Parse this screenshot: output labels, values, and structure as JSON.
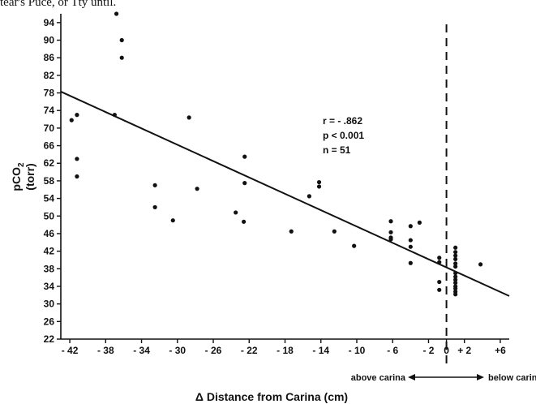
{
  "header_fragment": "tear's Puce, or Tty until.",
  "chart_data": {
    "type": "scatter",
    "title": "",
    "xlabel": "Δ Distance from Carina (cm)",
    "ylabel_line1": "pCO2",
    "ylabel_line2": "(torr)",
    "xlim": [
      -43,
      7
    ],
    "ylim": [
      22,
      96
    ],
    "x_ticks": [
      -42,
      -38,
      -34,
      -30,
      -26,
      -22,
      -18,
      -14,
      -10,
      -6,
      -2,
      0,
      2,
      6
    ],
    "x_tick_labels": [
      "- 42",
      "- 38",
      "- 34",
      "- 30",
      "- 26",
      "- 22",
      "- 18",
      "- 14",
      "- 10",
      "- 6",
      "- 2",
      "0",
      "+ 2",
      "+6"
    ],
    "y_ticks": [
      22,
      26,
      30,
      34,
      38,
      42,
      46,
      50,
      54,
      58,
      62,
      66,
      70,
      74,
      78,
      82,
      86,
      90,
      94
    ],
    "y_tick_labels": [
      "22",
      "26",
      "30",
      "34",
      "38",
      "42",
      "46",
      "50",
      "54",
      "58",
      "62",
      "66",
      "70",
      "74",
      "78",
      "82",
      "86",
      "90",
      "94"
    ],
    "stats": {
      "r": "r = - .862",
      "p": "p < 0.001",
      "n": "n = 51"
    },
    "regression_line": {
      "x": [
        -43,
        7
      ],
      "y": [
        78.3,
        31.8
      ]
    },
    "reference_line": {
      "x": 0,
      "style": "dashed"
    },
    "carina_labels": {
      "above": "above carina",
      "below": "below carina"
    },
    "series": [
      {
        "points": [
          [
            -36.8,
            96
          ],
          [
            -36.2,
            90
          ],
          [
            -36.2,
            86
          ],
          [
            -37,
            73
          ],
          [
            -41.2,
            73
          ],
          [
            -41.8,
            71.8
          ],
          [
            -41.2,
            63
          ],
          [
            -41.2,
            59
          ],
          [
            -28.7,
            72.4
          ],
          [
            -32.5,
            57
          ],
          [
            -32.5,
            52
          ],
          [
            -30.5,
            49
          ],
          [
            -27.8,
            56.2
          ],
          [
            -23.5,
            50.8
          ],
          [
            -22.6,
            48.7
          ],
          [
            -22.5,
            63.5
          ],
          [
            -22.5,
            57.5
          ],
          [
            -15.3,
            54.5
          ],
          [
            -14.2,
            57.7
          ],
          [
            -14.2,
            56.7
          ],
          [
            -17.3,
            46.5
          ],
          [
            -12.5,
            46.5
          ],
          [
            -10.3,
            43.2
          ],
          [
            -6.2,
            48.8
          ],
          [
            -6.2,
            46.3
          ],
          [
            -6.2,
            45.1
          ],
          [
            -6.2,
            44.7
          ],
          [
            -4,
            47.7
          ],
          [
            -4,
            44.5
          ],
          [
            -4,
            43
          ],
          [
            -4,
            39.3
          ],
          [
            -3,
            48.5
          ],
          [
            -0.8,
            40.5
          ],
          [
            -0.8,
            39.5
          ],
          [
            -0.8,
            35
          ],
          [
            -0.8,
            33.2
          ],
          [
            1,
            42.8
          ],
          [
            1,
            41.8
          ],
          [
            1,
            41
          ],
          [
            1,
            40.2
          ],
          [
            1,
            39.2
          ],
          [
            1,
            38.5
          ],
          [
            1,
            37
          ],
          [
            1,
            36.2
          ],
          [
            1,
            35.5
          ],
          [
            1,
            34.8
          ],
          [
            1,
            34
          ],
          [
            1,
            33.5
          ],
          [
            1,
            32.8
          ],
          [
            1,
            32.2
          ],
          [
            3.8,
            39
          ]
        ]
      }
    ]
  }
}
